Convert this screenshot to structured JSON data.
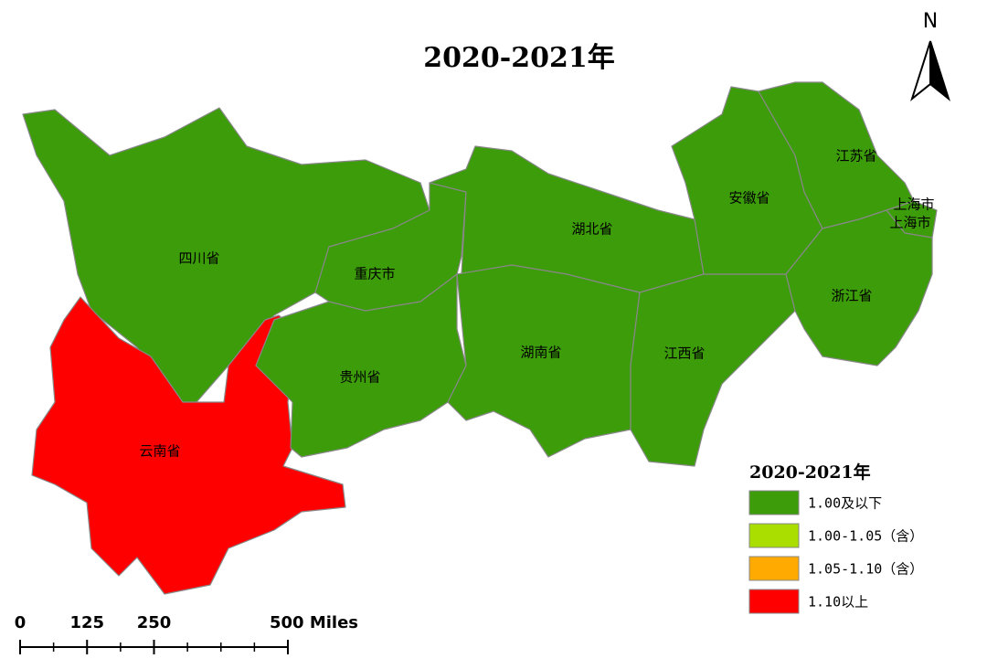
{
  "title": "2020-2021年",
  "north": "N",
  "regions": [
    {
      "name": "四川省",
      "color": "#3c9c0a"
    },
    {
      "name": "云南省",
      "color": "#ff0000"
    },
    {
      "name": "贵州省",
      "color": "#3c9c0a"
    },
    {
      "name": "重庆市",
      "color": "#3c9c0a"
    },
    {
      "name": "湖北省",
      "color": "#3c9c0a"
    },
    {
      "name": "湖南省",
      "color": "#3c9c0a"
    },
    {
      "name": "江西省",
      "color": "#3c9c0a"
    },
    {
      "name": "安徽省",
      "color": "#3c9c0a"
    },
    {
      "name": "江苏省",
      "color": "#3c9c0a"
    },
    {
      "name": "上海市",
      "color": "#3c9c0a"
    },
    {
      "name": "浙江省",
      "color": "#3c9c0a"
    }
  ],
  "extra_labels": [
    "上海市"
  ],
  "legend": {
    "title": "2020-2021年",
    "items": [
      {
        "label": "1.00及以下",
        "color": "#3c9c0a"
      },
      {
        "label": "1.00-1.05（含）",
        "color": "#aadd00"
      },
      {
        "label": "1.05-1.10（含）",
        "color": "#ffaa00"
      },
      {
        "label": "1.10以上",
        "color": "#ff0000"
      }
    ]
  },
  "scale_bar": {
    "xlim": [
      0,
      500
    ],
    "ticks": [
      0,
      125,
      250,
      {
        "value": 500,
        "label": "500 Miles"
      }
    ]
  }
}
